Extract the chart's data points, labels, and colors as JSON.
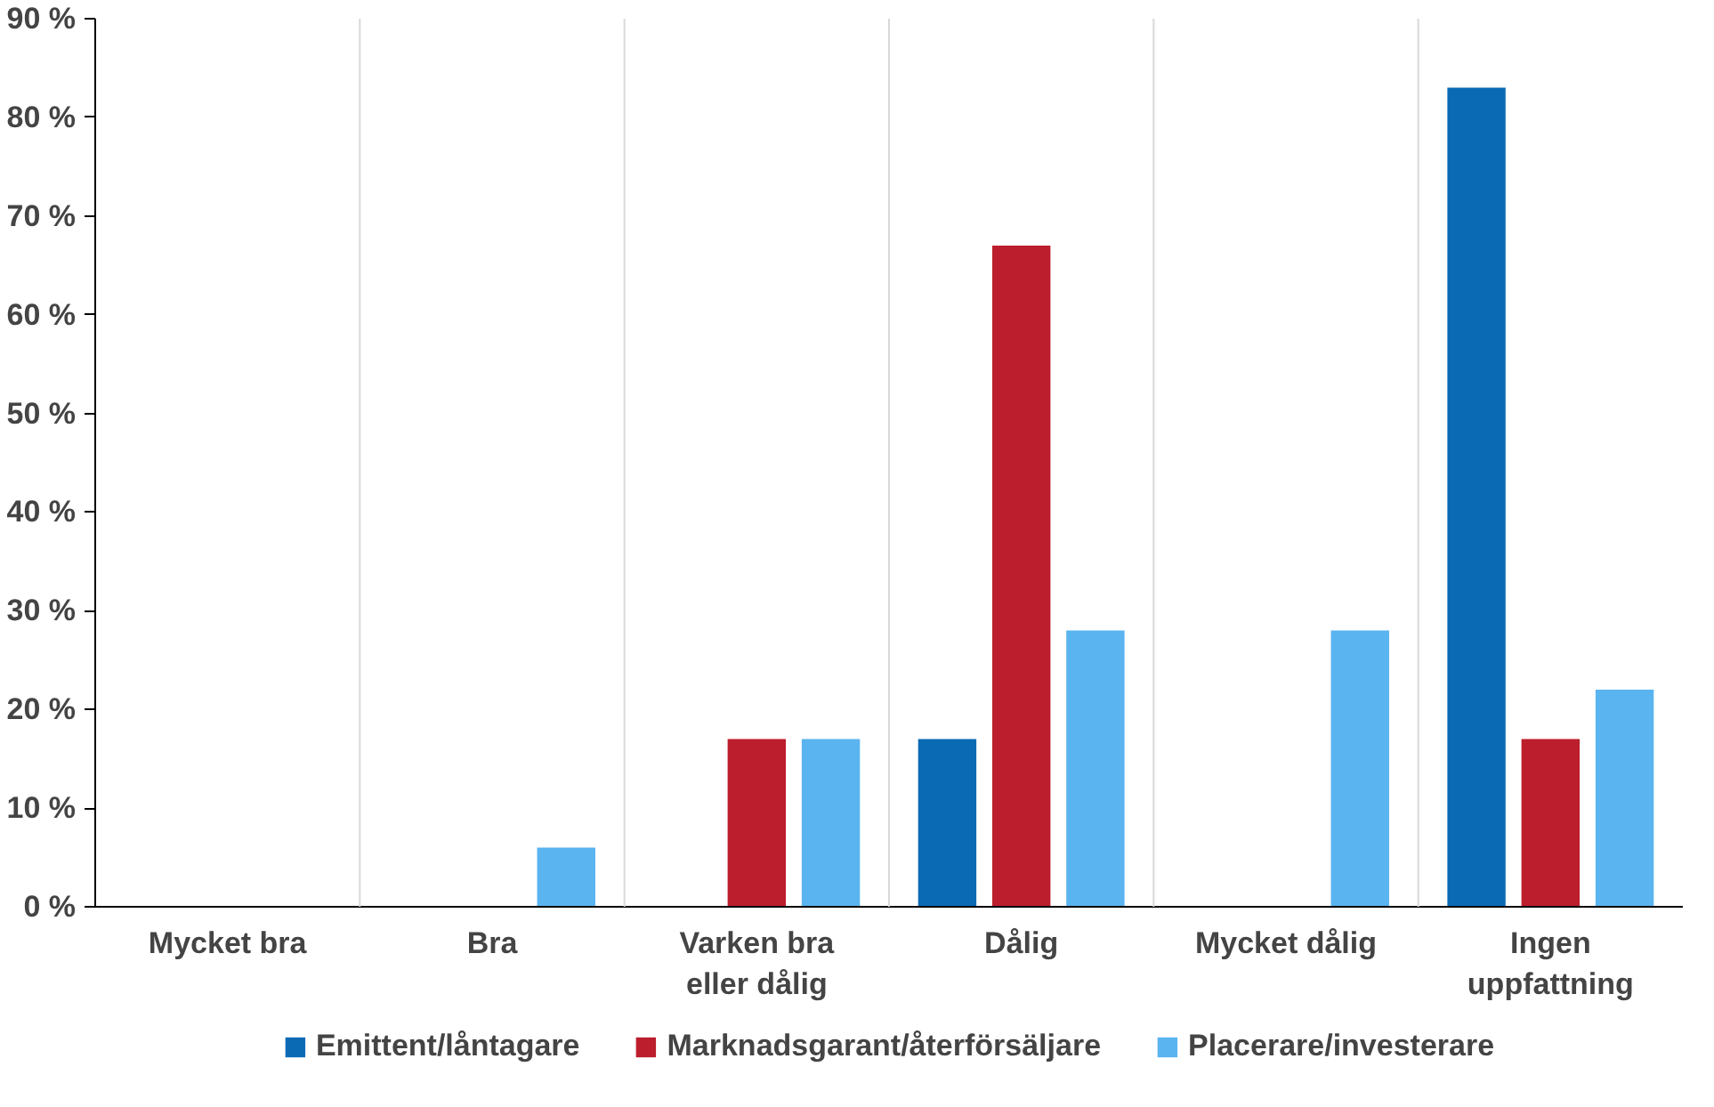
{
  "chart_data": {
    "type": "bar",
    "categories": [
      "Mycket bra",
      "Bra",
      "Varken bra eller dålig",
      "Dålig",
      "Mycket dålig",
      "Ingen uppfattning"
    ],
    "series": [
      {
        "name": "Emittent/låntagare",
        "color": "#0a6ab4",
        "values": [
          0,
          0,
          0,
          17,
          0,
          83
        ]
      },
      {
        "name": "Marknadsgarant/återförsäljare",
        "color": "#bc1e2d",
        "values": [
          0,
          0,
          17,
          67,
          0,
          17
        ]
      },
      {
        "name": "Placerare/investerare",
        "color": "#5ab4f0",
        "values": [
          0,
          6,
          17,
          28,
          28,
          22
        ]
      }
    ],
    "ylim": [
      0,
      90
    ],
    "yticks": [
      {
        "value": 0,
        "label": "0 %"
      },
      {
        "value": 10,
        "label": "10 %"
      },
      {
        "value": 20,
        "label": "20 %"
      },
      {
        "value": 30,
        "label": "30 %"
      },
      {
        "value": 40,
        "label": "40 %"
      },
      {
        "value": 50,
        "label": "50 %"
      },
      {
        "value": 60,
        "label": "60 %"
      },
      {
        "value": 70,
        "label": "70 %"
      },
      {
        "value": 80,
        "label": "80 %"
      },
      {
        "value": 90,
        "label": "90 %"
      }
    ],
    "grid": "x",
    "legend": "bottom"
  }
}
